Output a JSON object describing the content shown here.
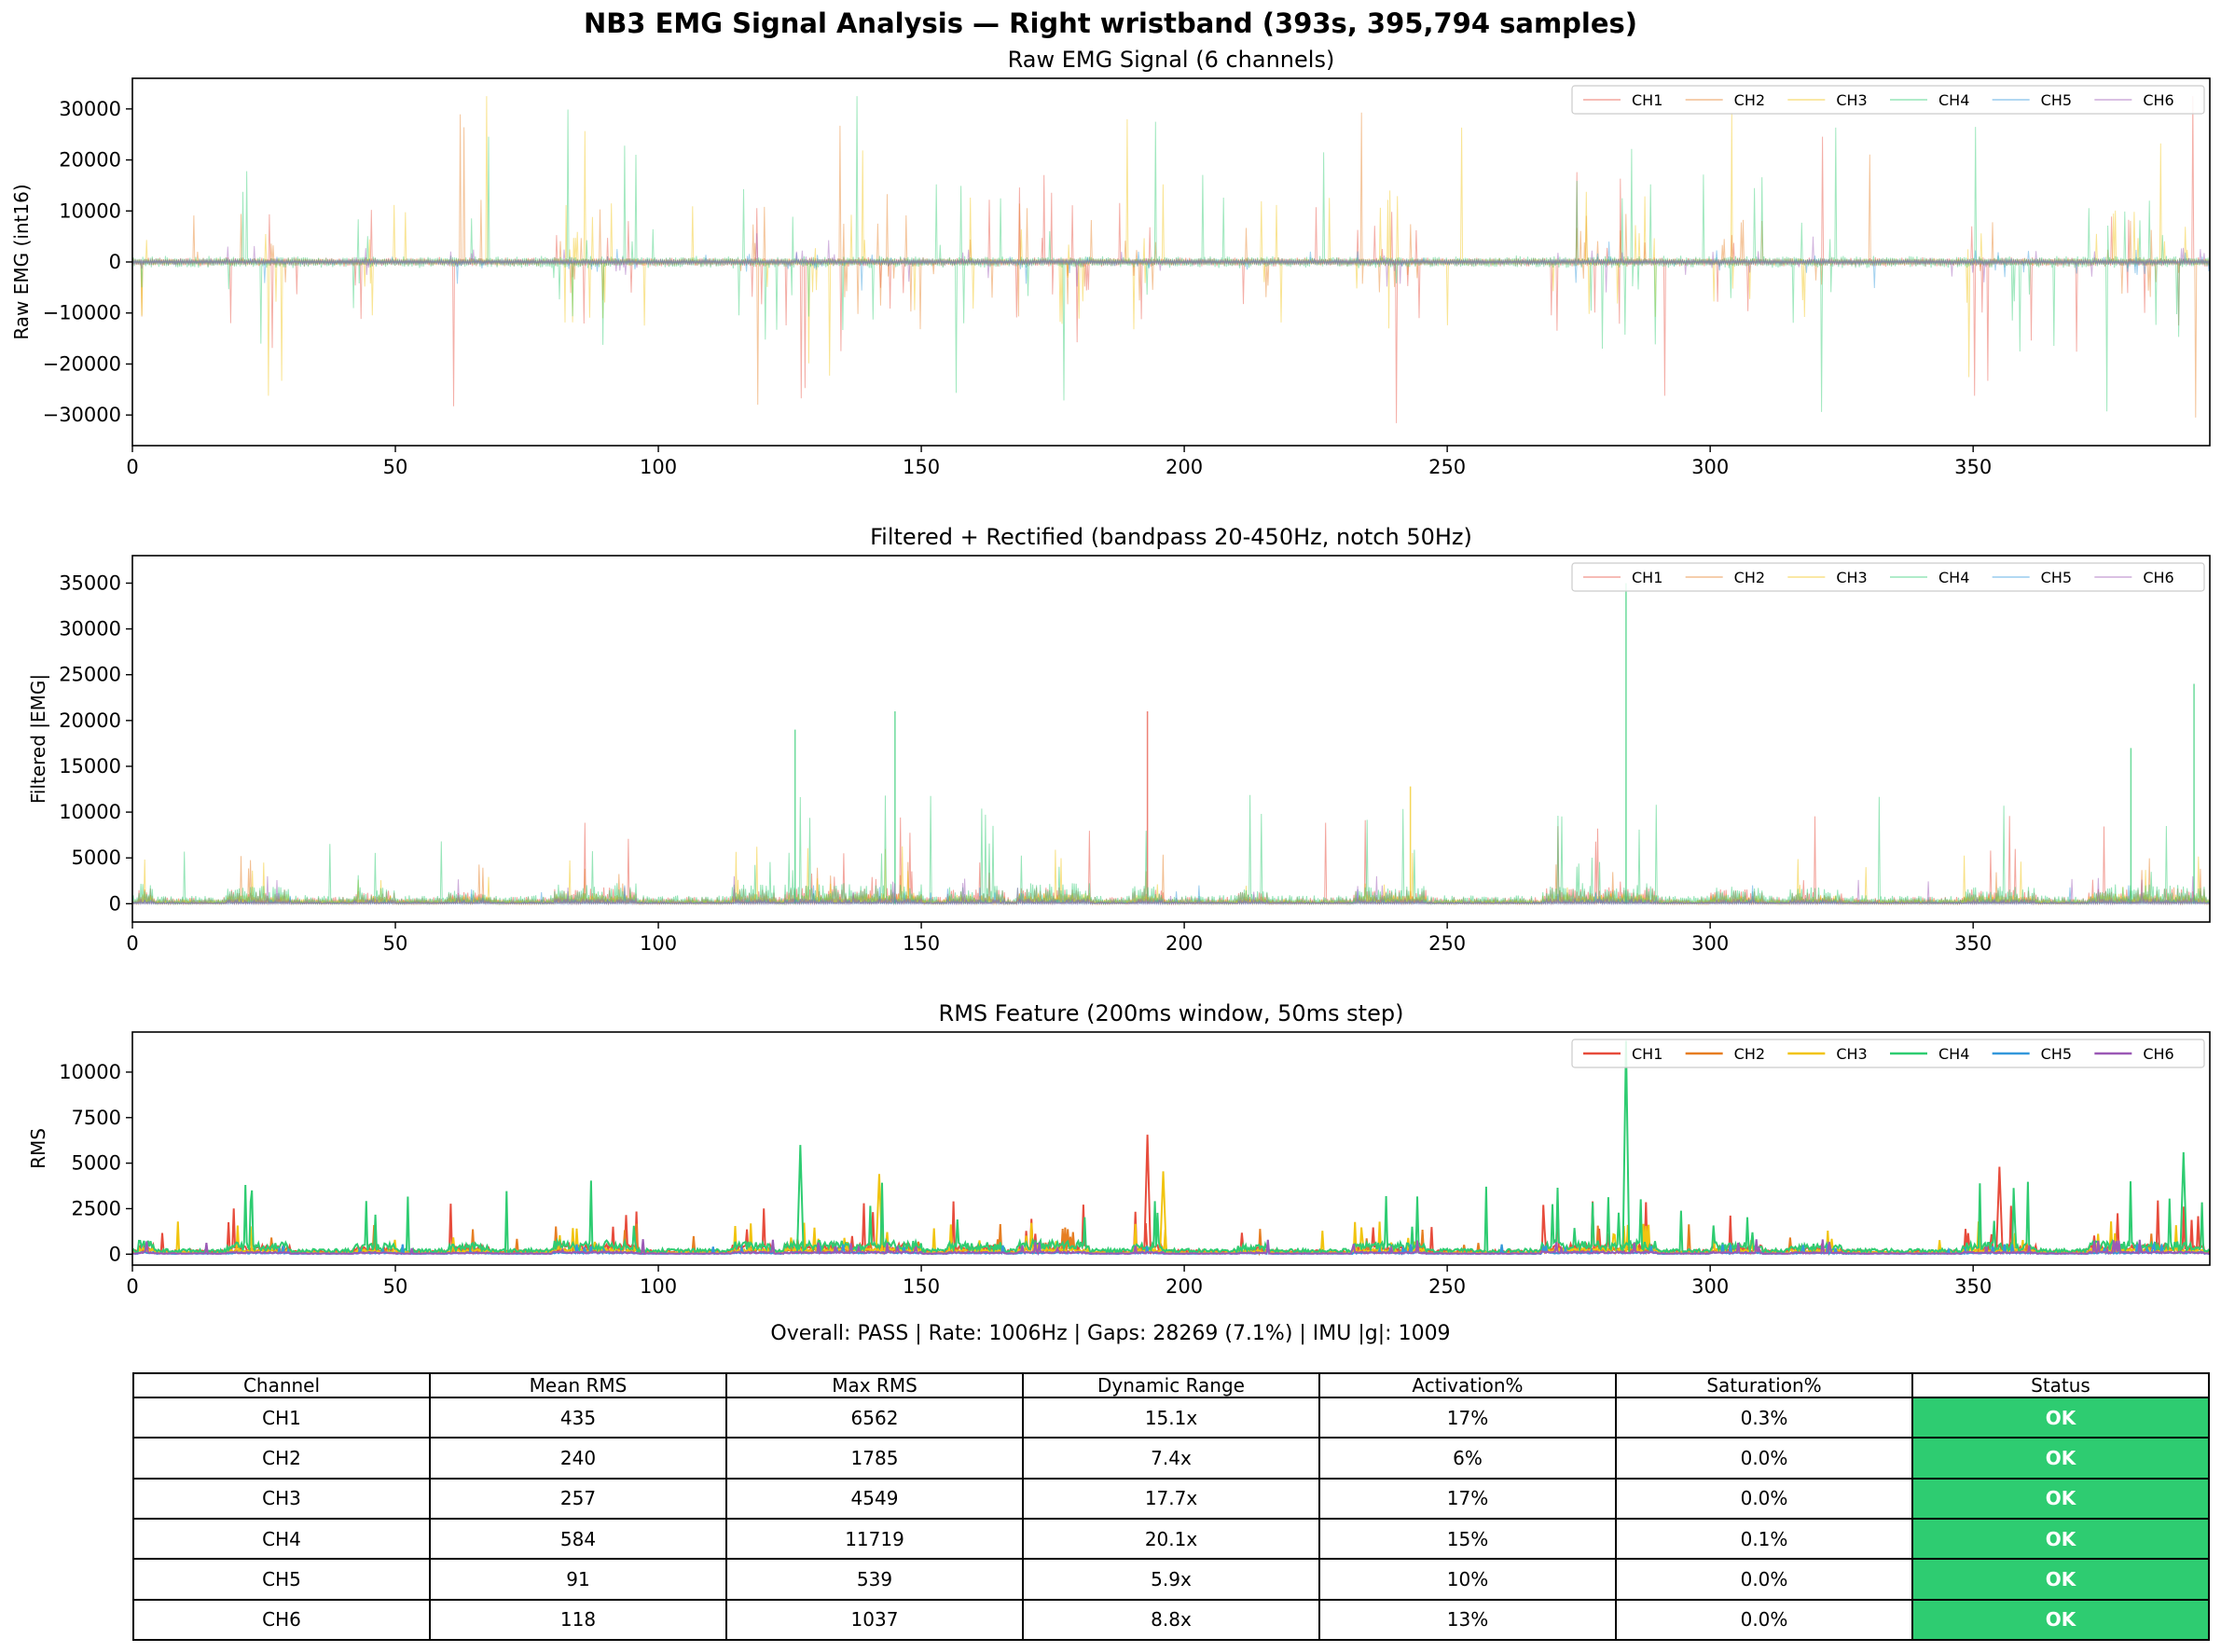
{
  "suptitle": "NB3 EMG Signal Analysis — Right wristband (393s, 395,794 samples)",
  "colors": {
    "CH1": "#e74c3c",
    "CH2": "#e67e22",
    "CH3": "#f1c40f",
    "CH4": "#2ecc71",
    "CH5": "#3498db",
    "CH6": "#9b59b6",
    "status_ok": "#2ecc71"
  },
  "chart_data": [
    {
      "type": "line",
      "title": "Raw EMG Signal (6 channels)",
      "xlabel": "",
      "ylabel": "Raw EMG (int16)",
      "xlim": [
        0,
        395
      ],
      "ylim": [
        -36000,
        36000
      ],
      "xticks": [
        0,
        50,
        100,
        150,
        200,
        250,
        300,
        350
      ],
      "yticks": [
        -30000,
        -20000,
        -10000,
        0,
        10000,
        20000,
        30000
      ],
      "ytick_labels": [
        "−30000",
        "−20000",
        "−10000",
        "0",
        "10000",
        "20000",
        "30000"
      ],
      "legend": "top-right",
      "series": [
        {
          "name": "CH1",
          "baseline_amplitude": 700,
          "typical_spike": 14000,
          "max_spike": 32767
        },
        {
          "name": "CH2",
          "baseline_amplitude": 500,
          "typical_spike": 9000,
          "max_spike": 32767
        },
        {
          "name": "CH3",
          "baseline_amplitude": 500,
          "typical_spike": 11000,
          "max_spike": 32767
        },
        {
          "name": "CH4",
          "baseline_amplitude": 900,
          "typical_spike": 15000,
          "max_spike": 32767
        },
        {
          "name": "CH5",
          "baseline_amplitude": 300,
          "typical_spike": 2000,
          "max_spike": 6000
        },
        {
          "name": "CH6",
          "baseline_amplitude": 400,
          "typical_spike": 2500,
          "max_spike": 6000
        }
      ]
    },
    {
      "type": "line",
      "title": "Filtered + Rectified (bandpass 20-450Hz, notch 50Hz)",
      "xlabel": "",
      "ylabel": "Filtered |EMG|",
      "xlim": [
        0,
        395
      ],
      "ylim": [
        -2000,
        38000
      ],
      "xticks": [
        0,
        50,
        100,
        150,
        200,
        250,
        300,
        350
      ],
      "yticks": [
        0,
        5000,
        10000,
        15000,
        20000,
        25000,
        30000,
        35000
      ],
      "ytick_labels": [
        "0",
        "5000",
        "10000",
        "15000",
        "20000",
        "25000",
        "30000",
        "35000"
      ],
      "legend": "top-right",
      "series": [
        {
          "name": "CH1",
          "typical": 1200,
          "max": 21000
        },
        {
          "name": "CH2",
          "typical": 700,
          "max": 9000
        },
        {
          "name": "CH3",
          "typical": 800,
          "max": 13000
        },
        {
          "name": "CH4",
          "typical": 1500,
          "max": 35000
        },
        {
          "name": "CH5",
          "typical": 300,
          "max": 2000
        },
        {
          "name": "CH6",
          "typical": 400,
          "max": 3000
        }
      ],
      "peaks": [
        {
          "series": "CH4",
          "x": 284,
          "y": 35000
        },
        {
          "series": "CH4",
          "x": 392,
          "y": 24000
        },
        {
          "series": "CH1",
          "x": 193,
          "y": 21000
        },
        {
          "series": "CH4",
          "x": 145,
          "y": 21000
        },
        {
          "series": "CH4",
          "x": 126,
          "y": 19000
        },
        {
          "series": "CH3",
          "x": 243,
          "y": 12800
        },
        {
          "series": "CH4",
          "x": 380,
          "y": 17000
        }
      ]
    },
    {
      "type": "line",
      "title": "RMS Feature (200ms window, 50ms step)",
      "xlabel": "",
      "ylabel": "RMS",
      "xlim": [
        0,
        395
      ],
      "ylim": [
        -600,
        12200
      ],
      "xticks": [
        0,
        50,
        100,
        150,
        200,
        250,
        300,
        350
      ],
      "yticks": [
        0,
        2500,
        5000,
        7500,
        10000
      ],
      "ytick_labels": [
        "0",
        "2500",
        "5000",
        "7500",
        "10000"
      ],
      "legend": "top-right",
      "series": [
        {
          "name": "CH1",
          "mean": 435,
          "max": 6562
        },
        {
          "name": "CH2",
          "mean": 240,
          "max": 1785
        },
        {
          "name": "CH3",
          "mean": 257,
          "max": 4549
        },
        {
          "name": "CH4",
          "mean": 584,
          "max": 11719
        },
        {
          "name": "CH5",
          "mean": 91,
          "max": 539
        },
        {
          "name": "CH6",
          "mean": 118,
          "max": 1037
        }
      ],
      "peaks": [
        {
          "series": "CH4",
          "x": 284,
          "y": 11719
        },
        {
          "series": "CH1",
          "x": 193,
          "y": 6562
        },
        {
          "series": "CH4",
          "x": 127,
          "y": 6000
        },
        {
          "series": "CH4",
          "x": 390,
          "y": 5600
        },
        {
          "series": "CH1",
          "x": 355,
          "y": 4800
        },
        {
          "series": "CH3",
          "x": 142,
          "y": 4400
        },
        {
          "series": "CH3",
          "x": 196,
          "y": 4549
        }
      ]
    }
  ],
  "overall": "Overall: PASS | Rate: 1006Hz | Gaps: 28269 (7.1%) | IMU |g|: 1009",
  "table": {
    "headers": [
      "Channel",
      "Mean RMS",
      "Max RMS",
      "Dynamic Range",
      "Activation%",
      "Saturation%",
      "Status"
    ],
    "rows": [
      [
        "CH1",
        "435",
        "6562",
        "15.1x",
        "17%",
        "0.3%",
        "OK"
      ],
      [
        "CH2",
        "240",
        "1785",
        "7.4x",
        "6%",
        "0.0%",
        "OK"
      ],
      [
        "CH3",
        "257",
        "4549",
        "17.7x",
        "17%",
        "0.0%",
        "OK"
      ],
      [
        "CH4",
        "584",
        "11719",
        "20.1x",
        "15%",
        "0.1%",
        "OK"
      ],
      [
        "CH5",
        "91",
        "539",
        "5.9x",
        "10%",
        "0.0%",
        "OK"
      ],
      [
        "CH6",
        "118",
        "1037",
        "8.8x",
        "13%",
        "0.0%",
        "OK"
      ]
    ]
  }
}
